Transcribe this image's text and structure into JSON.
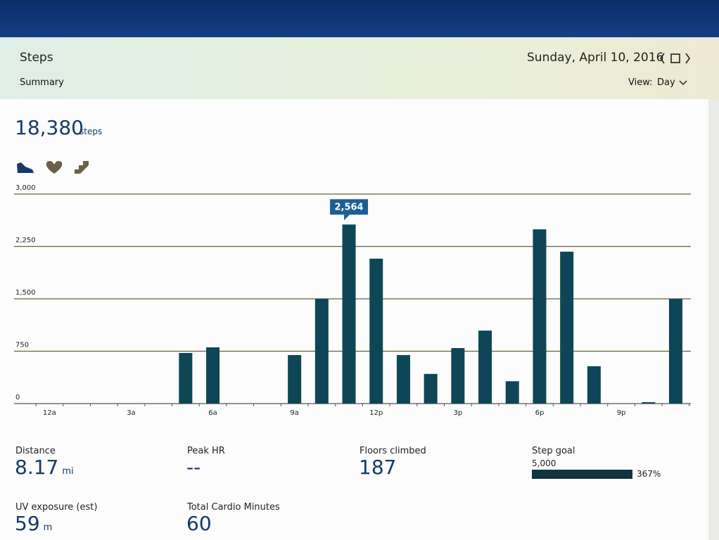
{
  "header": {
    "title": "Steps",
    "date": "Sunday, April 10, 2016",
    "tab": "Summary",
    "view_label": "View:",
    "view_value": "Day"
  },
  "total": {
    "value": "18,380",
    "unit": "steps"
  },
  "chart_data": {
    "type": "bar",
    "categories": [
      "12a",
      null,
      null,
      "3a",
      null,
      null,
      "6a",
      null,
      null,
      "9a",
      null,
      null,
      "12p",
      null,
      null,
      "3p",
      null,
      null,
      "6p",
      null,
      null,
      "9p",
      null,
      null
    ],
    "values": [
      0,
      0,
      0,
      0,
      0,
      725,
      805,
      0,
      0,
      695,
      1500,
      2564,
      2075,
      695,
      425,
      795,
      1045,
      320,
      2495,
      2175,
      535,
      0,
      20,
      1500
    ],
    "value_labels": [
      null,
      null,
      null,
      null,
      null,
      null,
      null,
      null,
      null,
      null,
      null,
      "2,564",
      null,
      null,
      null,
      null,
      null,
      null,
      null,
      null,
      null,
      null,
      null,
      null
    ],
    "color": "#0f4657",
    "ylim": [
      0,
      3000
    ],
    "yticks": [
      0,
      750,
      {
        "value": 1500,
        "label": "1,500"
      },
      {
        "value": 2250,
        "label": "2,250"
      },
      {
        "value": 3000,
        "label": "3,000"
      }
    ],
    "grid": true
  },
  "stats": [
    {
      "label": "Distance",
      "value": "8.17",
      "unit": "mi"
    },
    {
      "label": "Peak HR",
      "value": "--"
    },
    {
      "label": "Floors climbed",
      "value": "187"
    },
    {
      "label": "Step goal",
      "goal": "5,000",
      "percent": "367%"
    },
    {
      "label": "UV exposure (est)",
      "value": "59",
      "unit": "m"
    },
    {
      "label": "Total Cardio Minutes",
      "value": "60"
    }
  ]
}
